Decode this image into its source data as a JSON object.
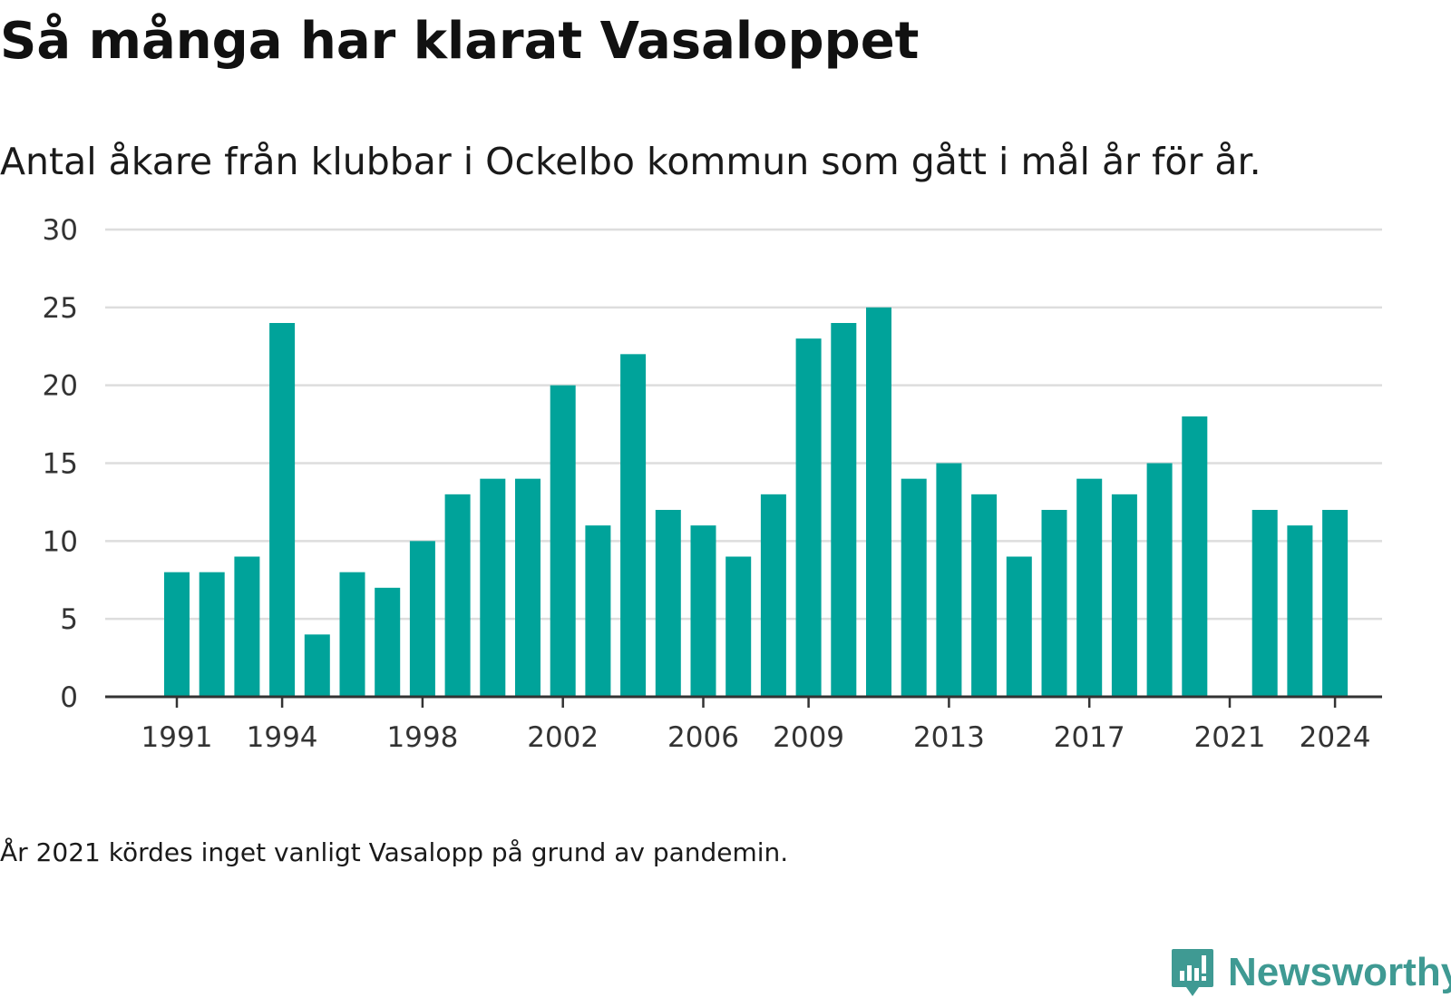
{
  "title": "Så många har klarat Vasaloppet",
  "subtitle": "Antal åkare från klubbar i Ockelbo kommun som gått i mål år för år.",
  "note": "År 2021 kördes inget vanligt Vasalopp på grund av pandemin.",
  "brand": {
    "name": "Newsworthy",
    "icon": "newsworthy-logo-icon",
    "color": "#3f9a93"
  },
  "colors": {
    "bar": "#00a39a",
    "grid": "#dddddd",
    "axis": "#333333"
  },
  "chart_data": {
    "type": "bar",
    "categories": [
      1991,
      1992,
      1993,
      1994,
      1995,
      1996,
      1997,
      1998,
      1999,
      2000,
      2001,
      2002,
      2003,
      2004,
      2005,
      2006,
      2007,
      2008,
      2009,
      2010,
      2011,
      2012,
      2013,
      2014,
      2015,
      2016,
      2017,
      2018,
      2019,
      2020,
      2021,
      2022,
      2023,
      2024
    ],
    "values": [
      8,
      8,
      9,
      24,
      4,
      8,
      7,
      10,
      13,
      14,
      14,
      20,
      11,
      22,
      12,
      11,
      9,
      13,
      23,
      24,
      25,
      14,
      15,
      13,
      9,
      12,
      14,
      13,
      15,
      18,
      null,
      12,
      11,
      12
    ],
    "x_ticks": [
      "1991",
      "1994",
      "1998",
      "2002",
      "2006",
      "2009",
      "2013",
      "2017",
      "2021",
      "2024"
    ],
    "y_ticks": [
      "0",
      "5",
      "10",
      "15",
      "20",
      "25",
      "30"
    ],
    "ylim": [
      0,
      30
    ],
    "grid": true,
    "legend": "none"
  }
}
